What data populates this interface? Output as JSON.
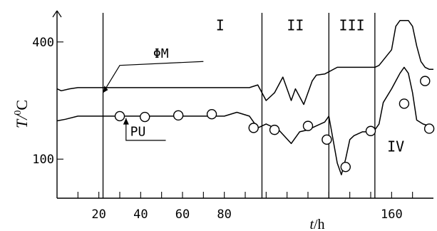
{
  "chart_data": {
    "type": "line",
    "title": "",
    "xlabel": "t/h",
    "ylabel": "T/⁰C",
    "ylabel_main": "T/",
    "ylabel_sup": "0",
    "ylabel_unit": "C",
    "xlabel_main": "t",
    "xlabel_unit": "/h",
    "xlim": [
      0,
      180
    ],
    "ylim": [
      0,
      480
    ],
    "grid": false,
    "legend": "inline labels with leader arrows",
    "x_ticks": [
      20,
      40,
      60,
      80,
      160
    ],
    "y_ticks": [
      100,
      400
    ],
    "region_boundaries": [
      22,
      98,
      130,
      152
    ],
    "region_labels": [
      "I",
      "II",
      "III",
      "IV"
    ],
    "series": [
      {
        "name": "ΦM",
        "marker": "none",
        "x": [
          0,
          2,
          6,
          10,
          22,
          28,
          40,
          60,
          80,
          92,
          96,
          100,
          104,
          108,
          112,
          114,
          118,
          122,
          124,
          128,
          134,
          140,
          146,
          150,
          152,
          154,
          160,
          162,
          164,
          168,
          170,
          172,
          174,
          176,
          178,
          180
        ],
        "y": [
          280,
          275,
          280,
          283,
          283,
          283,
          283,
          283,
          283,
          283,
          290,
          250,
          270,
          310,
          250,
          280,
          240,
          300,
          315,
          318,
          335,
          335,
          335,
          335,
          335,
          340,
          380,
          440,
          455,
          455,
          440,
          390,
          350,
          335,
          330,
          330
        ]
      },
      {
        "name": "PU",
        "marker": "circle",
        "x": [
          0,
          4,
          10,
          22,
          32,
          48,
          64,
          80,
          86,
          92,
          96,
          100,
          106,
          112,
          116,
          120,
          124,
          128,
          130,
          132,
          134,
          136,
          138,
          140,
          142,
          146,
          150,
          152,
          154,
          156,
          160,
          162,
          164,
          166,
          168,
          170,
          172,
          175,
          178,
          180
        ],
        "y": [
          198,
          202,
          210,
          210,
          210,
          210,
          210,
          210,
          220,
          210,
          180,
          190,
          175,
          140,
          170,
          175,
          185,
          195,
          210,
          150,
          90,
          60,
          100,
          150,
          160,
          170,
          170,
          175,
          190,
          245,
          280,
          300,
          320,
          335,
          320,
          270,
          200,
          190,
          185,
          185
        ]
      }
    ],
    "markers": {
      "ΦM": [],
      "PU": [
        [
          30,
          210
        ],
        [
          42,
          208
        ],
        [
          58,
          212
        ],
        [
          74,
          215
        ],
        [
          94,
          180
        ],
        [
          104,
          175
        ],
        [
          120,
          185
        ],
        [
          129,
          150
        ],
        [
          138,
          80
        ],
        [
          150,
          172
        ],
        [
          166,
          242
        ],
        [
          176,
          300
        ],
        [
          178,
          178
        ]
      ]
    }
  }
}
